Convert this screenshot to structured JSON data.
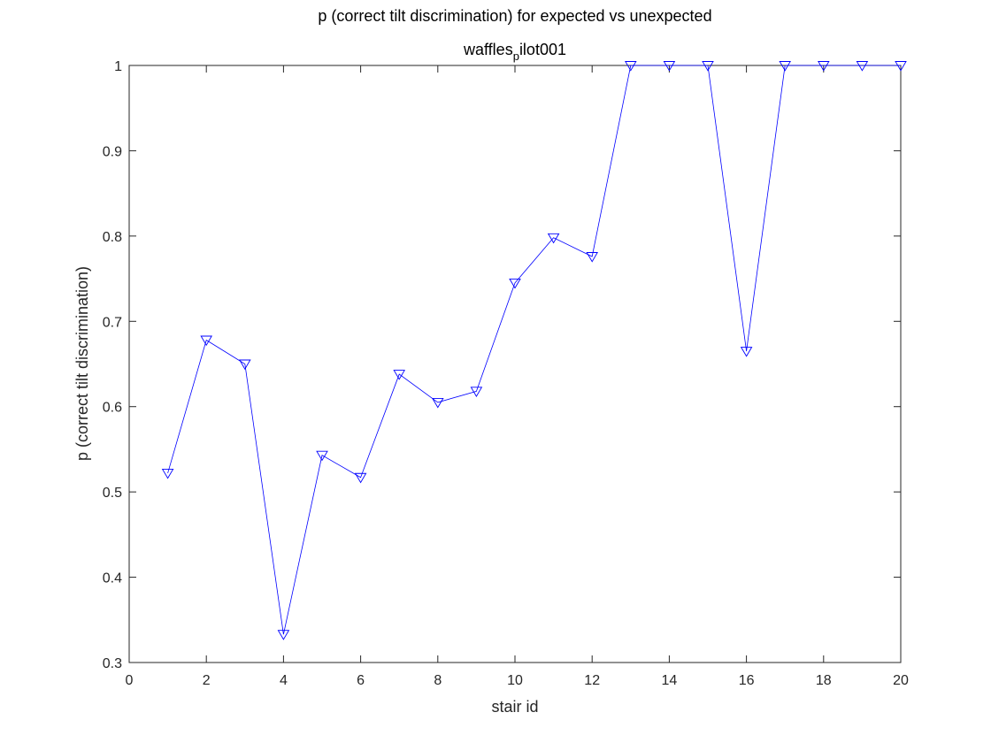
{
  "chart_data": {
    "type": "line",
    "title": "p (correct tilt discrimination) for expected vs unexpected",
    "subtitle_main": "waffles",
    "subtitle_sub": "p",
    "subtitle_rest": "ilot001",
    "xlabel": "stair id",
    "ylabel": "p (correct tilt discrimination)",
    "xlim": [
      0,
      20
    ],
    "ylim": [
      0.3,
      1
    ],
    "xticks": [
      "0",
      "2",
      "4",
      "6",
      "8",
      "10",
      "12",
      "14",
      "16",
      "18",
      "20"
    ],
    "yticks": [
      "0.3",
      "0.4",
      "0.5",
      "0.6",
      "0.7",
      "0.8",
      "0.9",
      "1"
    ],
    "grid": false,
    "series": [
      {
        "color": "#0000ff",
        "marker": "triangle-down",
        "x": [
          1,
          2,
          3,
          4,
          5,
          6,
          7,
          8,
          9,
          10,
          11,
          12,
          13,
          14,
          15,
          16,
          17,
          18,
          19,
          20
        ],
        "y": [
          0.522,
          0.678,
          0.65,
          0.333,
          0.543,
          0.517,
          0.638,
          0.605,
          0.618,
          0.745,
          0.798,
          0.776,
          1.0,
          1.0,
          1.0,
          0.665,
          1.0,
          1.0,
          1.0,
          1.0
        ]
      }
    ]
  }
}
